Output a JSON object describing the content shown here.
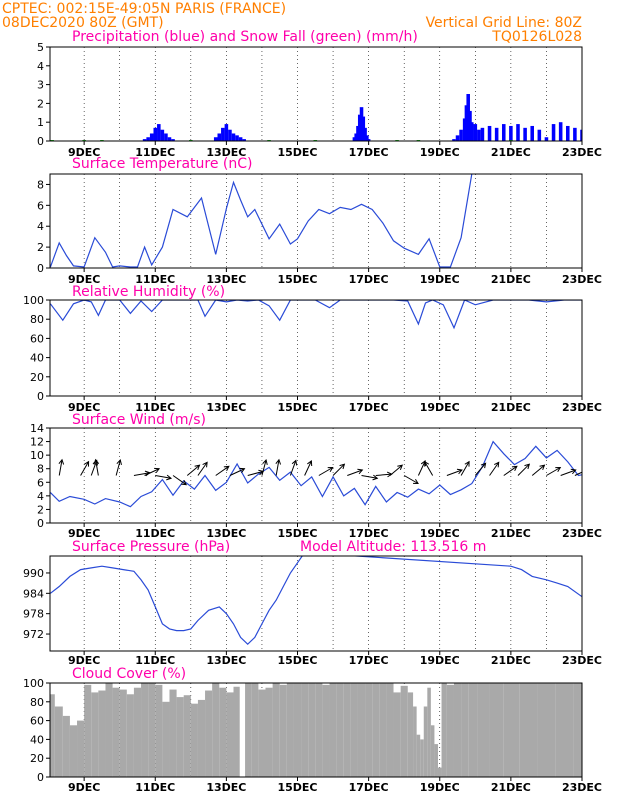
{
  "header": {
    "line1": "CPTEC:   002:15E-49:05N   PARIS (FRANCE)",
    "line2": "08DEC2020 80Z (GMT)",
    "vgrid": "Vertical Grid Line: 80Z",
    "code": "TQ0126L028"
  },
  "colors": {
    "header": "#ff7f00",
    "title": "#ff00aa",
    "precip": "#0000ff",
    "snow": "#00aa00",
    "line": "#2a4bd7",
    "cloud": "#a9a9a9",
    "arrow": "#000000"
  },
  "x_axis": {
    "labels": [
      "9DEC",
      "11DEC",
      "13DEC",
      "15DEC",
      "17DEC",
      "19DEC",
      "21DEC",
      "23DEC"
    ],
    "label_days": [
      9,
      11,
      13,
      15,
      17,
      19,
      21,
      23
    ],
    "range_days": [
      8.04,
      23.0
    ]
  },
  "chart_data": [
    {
      "id": "precip",
      "type": "bar",
      "title": "Precipitation (blue) and Snow Fall (green) (mm/h)",
      "ylim": [
        0,
        5
      ],
      "yticks": [
        0,
        1,
        2,
        3,
        4,
        5
      ],
      "series": [
        {
          "name": "Precipitation",
          "x": [
            10.7,
            10.8,
            10.9,
            11.0,
            11.1,
            11.2,
            11.3,
            11.4,
            11.5,
            12.7,
            12.8,
            12.9,
            13.0,
            13.1,
            13.2,
            13.3,
            13.4,
            13.5,
            16.6,
            16.65,
            16.7,
            16.75,
            16.8,
            16.85,
            16.9,
            16.95,
            17.0,
            19.4,
            19.5,
            19.6,
            19.7,
            19.75,
            19.8,
            19.85,
            19.9,
            20.0,
            20.1,
            20.2,
            20.4,
            20.6,
            20.8,
            21.0,
            21.2,
            21.4,
            21.6,
            21.8,
            22.0,
            22.2,
            22.4,
            22.6,
            22.8,
            23.0
          ],
          "values": [
            0.1,
            0.2,
            0.4,
            0.7,
            0.9,
            0.6,
            0.4,
            0.2,
            0.1,
            0.2,
            0.4,
            0.7,
            0.9,
            0.6,
            0.4,
            0.3,
            0.2,
            0.1,
            0.2,
            0.4,
            0.8,
            1.4,
            1.8,
            1.3,
            0.7,
            0.3,
            0.1,
            0.1,
            0.3,
            0.6,
            1.2,
            1.9,
            2.5,
            1.6,
            1.0,
            0.9,
            0.6,
            0.7,
            0.8,
            0.7,
            0.9,
            0.8,
            0.9,
            0.7,
            0.8,
            0.6,
            0.2,
            0.9,
            1.0,
            0.8,
            0.7,
            0.6
          ]
        },
        {
          "name": "Snow Fall",
          "x": [
            8.1,
            9.0,
            9.5,
            12.0,
            14.2,
            15.5,
            17.8,
            18.4,
            21.0
          ],
          "values": [
            0.05,
            0.05,
            0.05,
            0.05,
            0.05,
            0.05,
            0.05,
            0.05,
            0.05
          ]
        }
      ]
    },
    {
      "id": "temp",
      "type": "line",
      "title": "Surface Temperature (nC)",
      "ylim": [
        0,
        9
      ],
      "yticks": [
        0,
        2,
        4,
        6,
        8
      ],
      "x": [
        8.05,
        8.3,
        8.5,
        8.7,
        9.0,
        9.3,
        9.6,
        9.8,
        10.0,
        10.3,
        10.5,
        10.7,
        10.9,
        11.2,
        11.5,
        11.9,
        12.3,
        12.7,
        13.0,
        13.2,
        13.4,
        13.6,
        13.8,
        14.2,
        14.5,
        14.8,
        15.0,
        15.3,
        15.6,
        15.9,
        16.2,
        16.5,
        16.8,
        17.1,
        17.4,
        17.7,
        18.0,
        18.4,
        18.7,
        19.0,
        19.3,
        19.6,
        19.9
      ],
      "y": [
        0.1,
        2.4,
        1.2,
        0.2,
        0.1,
        2.9,
        1.5,
        0.1,
        0.2,
        0.1,
        0.1,
        2.0,
        0.3,
        2.0,
        5.6,
        4.9,
        6.7,
        1.3,
        5.7,
        8.2,
        6.5,
        4.9,
        5.6,
        2.8,
        4.2,
        2.3,
        2.8,
        4.5,
        5.6,
        5.2,
        5.8,
        5.6,
        6.1,
        5.6,
        4.3,
        2.6,
        1.9,
        1.3,
        2.8,
        0.1,
        0.1,
        2.9,
        9.0
      ]
    },
    {
      "id": "rh",
      "type": "line",
      "title": "Relative Humidity (%)",
      "ylim": [
        0,
        100
      ],
      "yticks": [
        0,
        20,
        40,
        60,
        80,
        100
      ],
      "x": [
        8.05,
        8.4,
        8.7,
        9.0,
        9.2,
        9.4,
        9.6,
        10.0,
        10.3,
        10.6,
        10.9,
        11.2,
        11.5,
        11.9,
        12.2,
        12.4,
        12.7,
        13.0,
        13.3,
        13.6,
        13.9,
        14.2,
        14.5,
        14.8,
        15.2,
        15.5,
        15.9,
        16.2,
        16.5,
        16.8,
        17.1,
        17.4,
        17.7,
        18.1,
        18.4,
        18.6,
        18.8,
        19.1,
        19.4,
        19.7,
        20.0,
        20.5,
        21.0,
        21.5,
        22.0,
        22.5,
        23.0
      ],
      "y": [
        96,
        79,
        96,
        100,
        98,
        84,
        100,
        100,
        86,
        99,
        88,
        100,
        100,
        100,
        100,
        83,
        100,
        98,
        100,
        99,
        100,
        94,
        79,
        100,
        100,
        100,
        92,
        100,
        100,
        100,
        100,
        100,
        100,
        99,
        75,
        97,
        100,
        95,
        71,
        100,
        95,
        100,
        100,
        100,
        98,
        100,
        100
      ]
    },
    {
      "id": "wind",
      "type": "line",
      "title": "Surface Wind (m/s)",
      "ylim": [
        0,
        14
      ],
      "yticks": [
        0,
        2,
        4,
        6,
        8,
        10,
        12,
        14
      ],
      "x": [
        8.05,
        8.3,
        8.6,
        9.0,
        9.3,
        9.6,
        10.0,
        10.3,
        10.6,
        10.9,
        11.2,
        11.5,
        11.8,
        12.1,
        12.4,
        12.7,
        13.0,
        13.3,
        13.6,
        13.9,
        14.2,
        14.5,
        14.8,
        15.1,
        15.4,
        15.7,
        16.0,
        16.3,
        16.6,
        16.9,
        17.2,
        17.5,
        17.8,
        18.1,
        18.4,
        18.7,
        19.0,
        19.3,
        19.6,
        19.9,
        20.2,
        20.5,
        20.8,
        21.1,
        21.4,
        21.7,
        22.0,
        22.3,
        22.6,
        22.9,
        23.0
      ],
      "y": [
        4.5,
        3.2,
        3.9,
        3.5,
        2.8,
        3.6,
        3.1,
        2.4,
        3.9,
        4.6,
        6.4,
        4.1,
        6.2,
        5.0,
        7.0,
        4.8,
        6.0,
        8.7,
        5.9,
        7.2,
        8.2,
        6.3,
        7.5,
        5.5,
        6.8,
        3.9,
        6.8,
        4.0,
        5.1,
        2.7,
        5.4,
        3.1,
        4.5,
        3.8,
        5.0,
        4.3,
        5.6,
        4.2,
        4.9,
        5.8,
        8.3,
        12.0,
        10.2,
        8.6,
        9.5,
        11.3,
        9.6,
        10.7,
        9.0,
        7.0,
        7.1
      ],
      "arrows": [
        {
          "day": 8.3,
          "dir": 80
        },
        {
          "day": 8.9,
          "dir": 60
        },
        {
          "day": 9.2,
          "dir": 70
        },
        {
          "day": 9.4,
          "dir": 100
        },
        {
          "day": 9.9,
          "dir": 75
        },
        {
          "day": 10.4,
          "dir": 10
        },
        {
          "day": 10.7,
          "dir": 25
        },
        {
          "day": 11.0,
          "dir": -10
        },
        {
          "day": 11.5,
          "dir": -35
        },
        {
          "day": 11.9,
          "dir": 40
        },
        {
          "day": 12.2,
          "dir": 55
        },
        {
          "day": 12.7,
          "dir": 35
        },
        {
          "day": 13.1,
          "dir": 25
        },
        {
          "day": 13.6,
          "dir": 15
        },
        {
          "day": 14.0,
          "dir": 75
        },
        {
          "day": 14.4,
          "dir": 80
        },
        {
          "day": 14.8,
          "dir": 70
        },
        {
          "day": 15.2,
          "dir": 65
        },
        {
          "day": 15.6,
          "dir": 30
        },
        {
          "day": 16.0,
          "dir": 45
        },
        {
          "day": 16.4,
          "dir": 20
        },
        {
          "day": 16.8,
          "dir": -10
        },
        {
          "day": 17.2,
          "dir": 5
        },
        {
          "day": 17.6,
          "dir": 40
        },
        {
          "day": 18.0,
          "dir": -30
        },
        {
          "day": 18.4,
          "dir": 65
        },
        {
          "day": 18.8,
          "dir": 120
        },
        {
          "day": 19.2,
          "dir": 20
        },
        {
          "day": 19.6,
          "dir": 60
        },
        {
          "day": 20.0,
          "dir": 50
        },
        {
          "day": 20.4,
          "dir": 55
        },
        {
          "day": 20.8,
          "dir": 35
        },
        {
          "day": 21.2,
          "dir": 45
        },
        {
          "day": 21.6,
          "dir": 40
        },
        {
          "day": 22.0,
          "dir": 30
        },
        {
          "day": 22.4,
          "dir": 20
        },
        {
          "day": 22.8,
          "dir": 25
        }
      ]
    },
    {
      "id": "pres",
      "type": "line",
      "title": "Surface Pressure (hPa)",
      "subtitle": "Model Altitude: 113.516 m",
      "ylim": [
        967,
        995
      ],
      "yticks": [
        972,
        978,
        984,
        990
      ],
      "x": [
        8.05,
        8.3,
        8.6,
        8.9,
        9.2,
        9.5,
        9.8,
        10.1,
        10.4,
        10.6,
        10.8,
        11.0,
        11.2,
        11.4,
        11.6,
        11.8,
        12.0,
        12.2,
        12.5,
        12.8,
        13.0,
        13.2,
        13.4,
        13.6,
        13.8,
        14.0,
        14.2,
        14.4,
        14.6,
        14.8,
        15.0,
        15.2,
        21.0,
        21.3,
        21.6,
        22.0,
        22.3,
        22.6,
        23.0
      ],
      "y": [
        984,
        986,
        989,
        991,
        991.5,
        992,
        991.5,
        991.0,
        990.5,
        988,
        985,
        980,
        975,
        973.5,
        973.0,
        973.0,
        973.5,
        976,
        979,
        980,
        978,
        975,
        971,
        969,
        971,
        975,
        979,
        982,
        986,
        990,
        993,
        996,
        992,
        991,
        989,
        988,
        987,
        986,
        983
      ]
    },
    {
      "id": "cloud",
      "type": "bar",
      "title": "Cloud Cover (%)",
      "ylim": [
        0,
        100
      ],
      "yticks": [
        0,
        20,
        40,
        60,
        80,
        100
      ],
      "x": [
        8.05,
        8.3,
        8.5,
        8.7,
        8.9,
        9.1,
        9.3,
        9.5,
        9.7,
        9.9,
        10.1,
        10.3,
        10.5,
        10.7,
        10.9,
        11.1,
        11.3,
        11.5,
        11.7,
        11.9,
        12.1,
        12.3,
        12.5,
        12.7,
        12.9,
        13.1,
        13.3,
        13.45,
        13.6,
        13.8,
        14.0,
        14.2,
        14.4,
        14.6,
        14.8,
        15.0,
        15.2,
        15.4,
        15.6,
        15.8,
        16.0,
        16.2,
        16.4,
        16.6,
        16.8,
        17.0,
        17.2,
        17.4,
        17.6,
        17.8,
        18.0,
        18.2,
        18.3,
        18.4,
        18.5,
        18.6,
        18.7,
        18.8,
        18.9,
        19.0,
        19.1,
        19.3,
        19.5,
        19.7,
        19.9,
        20.2,
        20.6,
        21.0,
        21.5,
        22.0,
        22.5,
        23.0
      ],
      "values": [
        88,
        75,
        65,
        55,
        60,
        98,
        90,
        92,
        100,
        95,
        93,
        88,
        95,
        100,
        100,
        98,
        80,
        93,
        85,
        87,
        78,
        82,
        92,
        100,
        95,
        90,
        96,
        0,
        100,
        100,
        93,
        95,
        100,
        98,
        100,
        100,
        100,
        100,
        100,
        98,
        100,
        100,
        100,
        100,
        100,
        100,
        100,
        100,
        100,
        90,
        97,
        90,
        75,
        45,
        40,
        75,
        95,
        55,
        35,
        10,
        100,
        98,
        100,
        100,
        100,
        100,
        100,
        100,
        100,
        100,
        100,
        100
      ]
    }
  ]
}
